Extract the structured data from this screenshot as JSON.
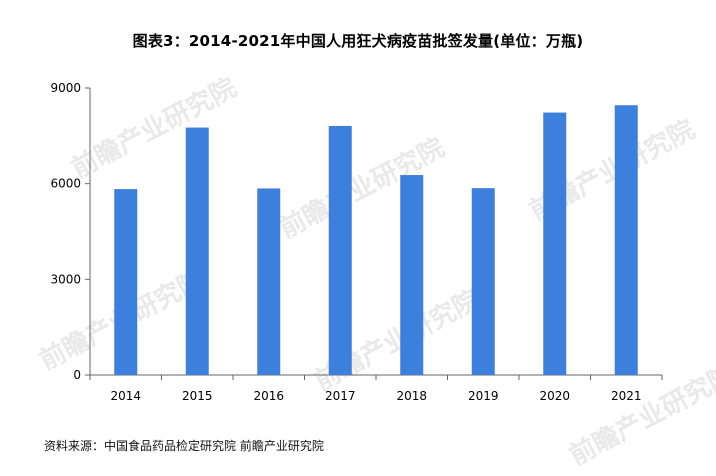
{
  "watermark_text": "前瞻产业研究院",
  "source_text": "资料来源：中国食品药品检定研究院 前瞻产业研究院",
  "colors": {
    "bar": "#3d7fdd",
    "axis": "#666666",
    "text": "#000000",
    "watermark": "#e9e9e9"
  },
  "chart_data": {
    "type": "bar",
    "title": "图表3：2014-2021年中国人用狂犬病疫苗批签发量(单位：万瓶)",
    "xlabel": "",
    "ylabel": "",
    "categories": [
      "2014",
      "2015",
      "2016",
      "2017",
      "2018",
      "2019",
      "2020",
      "2021"
    ],
    "values": [
      5830,
      7760,
      5850,
      7810,
      6270,
      5860,
      8230,
      8460
    ],
    "ylim": [
      0,
      9000
    ],
    "yticks": [
      0,
      3000,
      6000,
      9000
    ],
    "grid": false,
    "legend": "none"
  }
}
